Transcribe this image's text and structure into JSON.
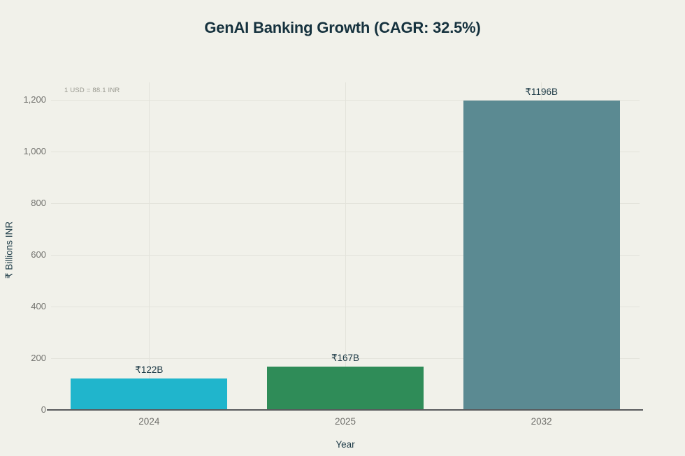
{
  "page": {
    "background": "#f1f1ea"
  },
  "chart_data": {
    "type": "bar",
    "title": "GenAI Banking Growth (CAGR: 32.5%)",
    "annotation": "1 USD = 88.1 INR",
    "categories": [
      "2024",
      "2025",
      "2032"
    ],
    "values": [
      122,
      167,
      1196
    ],
    "value_labels": [
      "₹122B",
      "₹167B",
      "₹1196B"
    ],
    "bar_colors": [
      "#20b5cc",
      "#2f8c58",
      "#5b8a92"
    ],
    "xlabel": "Year",
    "ylabel": "₹ Billions INR",
    "ylim": [
      0,
      1260
    ],
    "yticks": [
      0,
      200,
      400,
      600,
      800,
      1000,
      1200
    ],
    "ytick_labels": [
      "0",
      "200",
      "400",
      "600",
      "800",
      "1,000",
      "1,200"
    ],
    "grid": true,
    "legend": "none",
    "colors": {
      "title_text": "#16323e",
      "axis_line": "#595a5c",
      "gridline": "#e3e3db",
      "tick_text": "#73736f",
      "value_label_text": "#1c3945",
      "note_text": "#98988f"
    }
  }
}
